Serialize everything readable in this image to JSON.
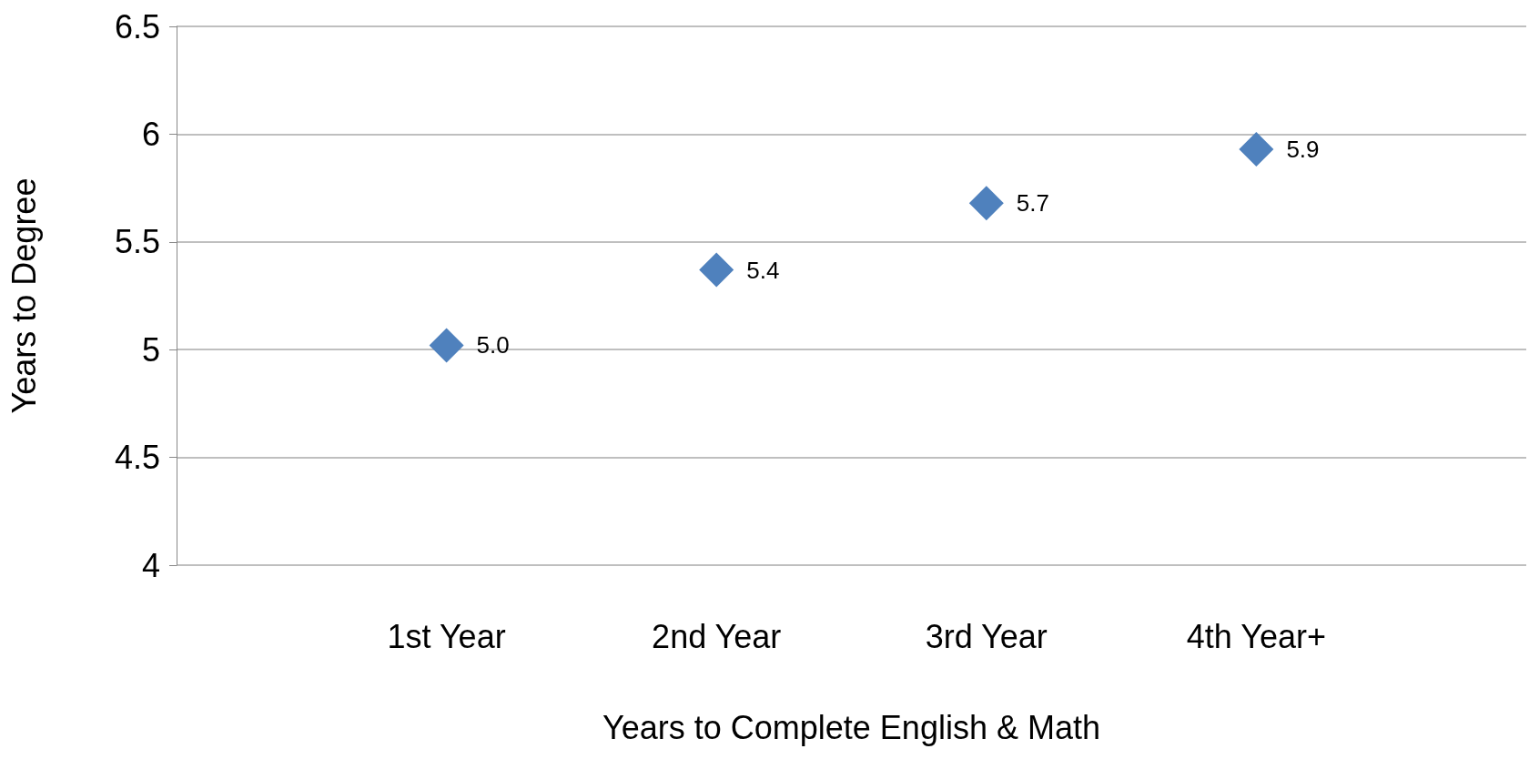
{
  "chart_data": {
    "type": "scatter",
    "xlabel": "Years to Complete English & Math",
    "ylabel": "Years to Degree",
    "categories": [
      null,
      "1st Year",
      "2nd Year",
      "3rd Year",
      "4th Year+",
      null
    ],
    "values": [
      null,
      5.02,
      5.37,
      5.68,
      5.93,
      null
    ],
    "value_labels": [
      null,
      "5.0",
      "5.4",
      "5.7",
      "5.9",
      null
    ],
    "color": "#4f81bd",
    "marker": "diamond",
    "ylim": [
      4,
      6.5
    ],
    "yticks": [
      4,
      4.5,
      5,
      5.5,
      6,
      6.5
    ],
    "grid": "y"
  }
}
